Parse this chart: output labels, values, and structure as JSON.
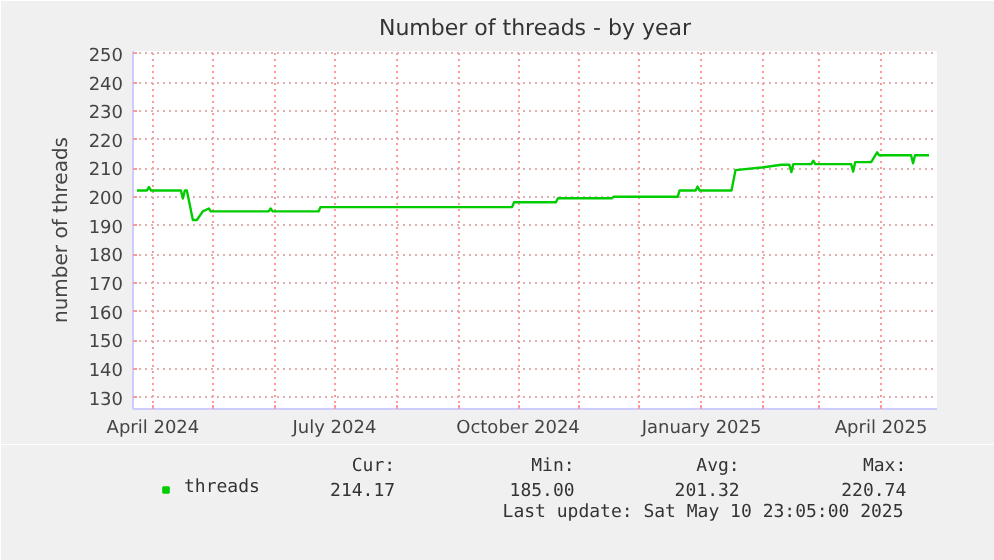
{
  "chart_data": {
    "type": "line",
    "title": "Number of threads - by year",
    "ylabel": "number of threads",
    "x": [
      "2024-03-24",
      "2024-03-29",
      "2024-03-30",
      "2024-03-31",
      "2024-04-15",
      "2024-04-16",
      "2024-04-17",
      "2024-04-18",
      "2024-04-21",
      "2024-04-23",
      "2024-04-26",
      "2024-04-29",
      "2024-04-30",
      "2024-05-29",
      "2024-05-30",
      "2024-05-31",
      "2024-06-23",
      "2024-06-24",
      "2024-09-28",
      "2024-09-29",
      "2024-10-20",
      "2024-10-21",
      "2024-11-17",
      "2024-11-18",
      "2024-12-20",
      "2024-12-21",
      "2024-12-29",
      "2024-12-30",
      "2024-12-31",
      "2025-01-16",
      "2025-01-18",
      "2025-01-31",
      "2025-02-10",
      "2025-02-14",
      "2025-02-15",
      "2025-02-16",
      "2025-02-25",
      "2025-02-26",
      "2025-02-27",
      "2025-03-17",
      "2025-03-18",
      "2025-03-19",
      "2025-03-27",
      "2025-03-30",
      "2025-03-31",
      "2025-04-16",
      "2025-04-17",
      "2025-04-18",
      "2025-04-25"
    ],
    "series": [
      {
        "name": "threads",
        "color": "#00cc00",
        "values": [
          202.3,
          202.3,
          203.5,
          202.3,
          202.3,
          199.5,
          202.3,
          202.3,
          192,
          192,
          195,
          196,
          195,
          195,
          196,
          195,
          195,
          196.5,
          196.5,
          198.2,
          198.2,
          199.6,
          199.6,
          200.1,
          200.1,
          202.3,
          202.3,
          203.7,
          202.3,
          202.3,
          209.4,
          210.3,
          211.3,
          211.3,
          208.7,
          211.5,
          211.5,
          212.7,
          211.5,
          211.5,
          208.9,
          212.2,
          212.2,
          215.6,
          214.6,
          214.6,
          211.8,
          214.6,
          214.6
        ]
      }
    ],
    "xlim": [
      "2024-03-22",
      "2025-04-29"
    ],
    "xticks": [
      {
        "value": "2024-04-01",
        "label": "April 2024"
      },
      {
        "value": "2024-05-01",
        "label": null
      },
      {
        "value": "2024-06-01",
        "label": null
      },
      {
        "value": "2024-07-01",
        "label": "July 2024"
      },
      {
        "value": "2024-08-01",
        "label": null
      },
      {
        "value": "2024-09-01",
        "label": null
      },
      {
        "value": "2024-10-01",
        "label": "October 2024"
      },
      {
        "value": "2024-11-01",
        "label": null
      },
      {
        "value": "2024-12-01",
        "label": null
      },
      {
        "value": "2025-01-01",
        "label": "January 2025"
      },
      {
        "value": "2025-02-01",
        "label": null
      },
      {
        "value": "2025-03-01",
        "label": null
      },
      {
        "value": "2025-04-01",
        "label": "April 2025"
      }
    ],
    "ylim": [
      126,
      251
    ],
    "yticks": [
      130,
      140,
      150,
      160,
      170,
      180,
      190,
      200,
      210,
      220,
      230,
      240,
      250
    ],
    "grid": true,
    "legend": "bottom",
    "marker": "none",
    "line_style": "solid",
    "annotations": [
      "Cur:",
      "Min:",
      "Avg:",
      "Max:",
      "214.17",
      "185.00",
      "201.32",
      "220.74",
      "Last update:  Sat May 10 23:05:00 2025"
    ]
  }
}
